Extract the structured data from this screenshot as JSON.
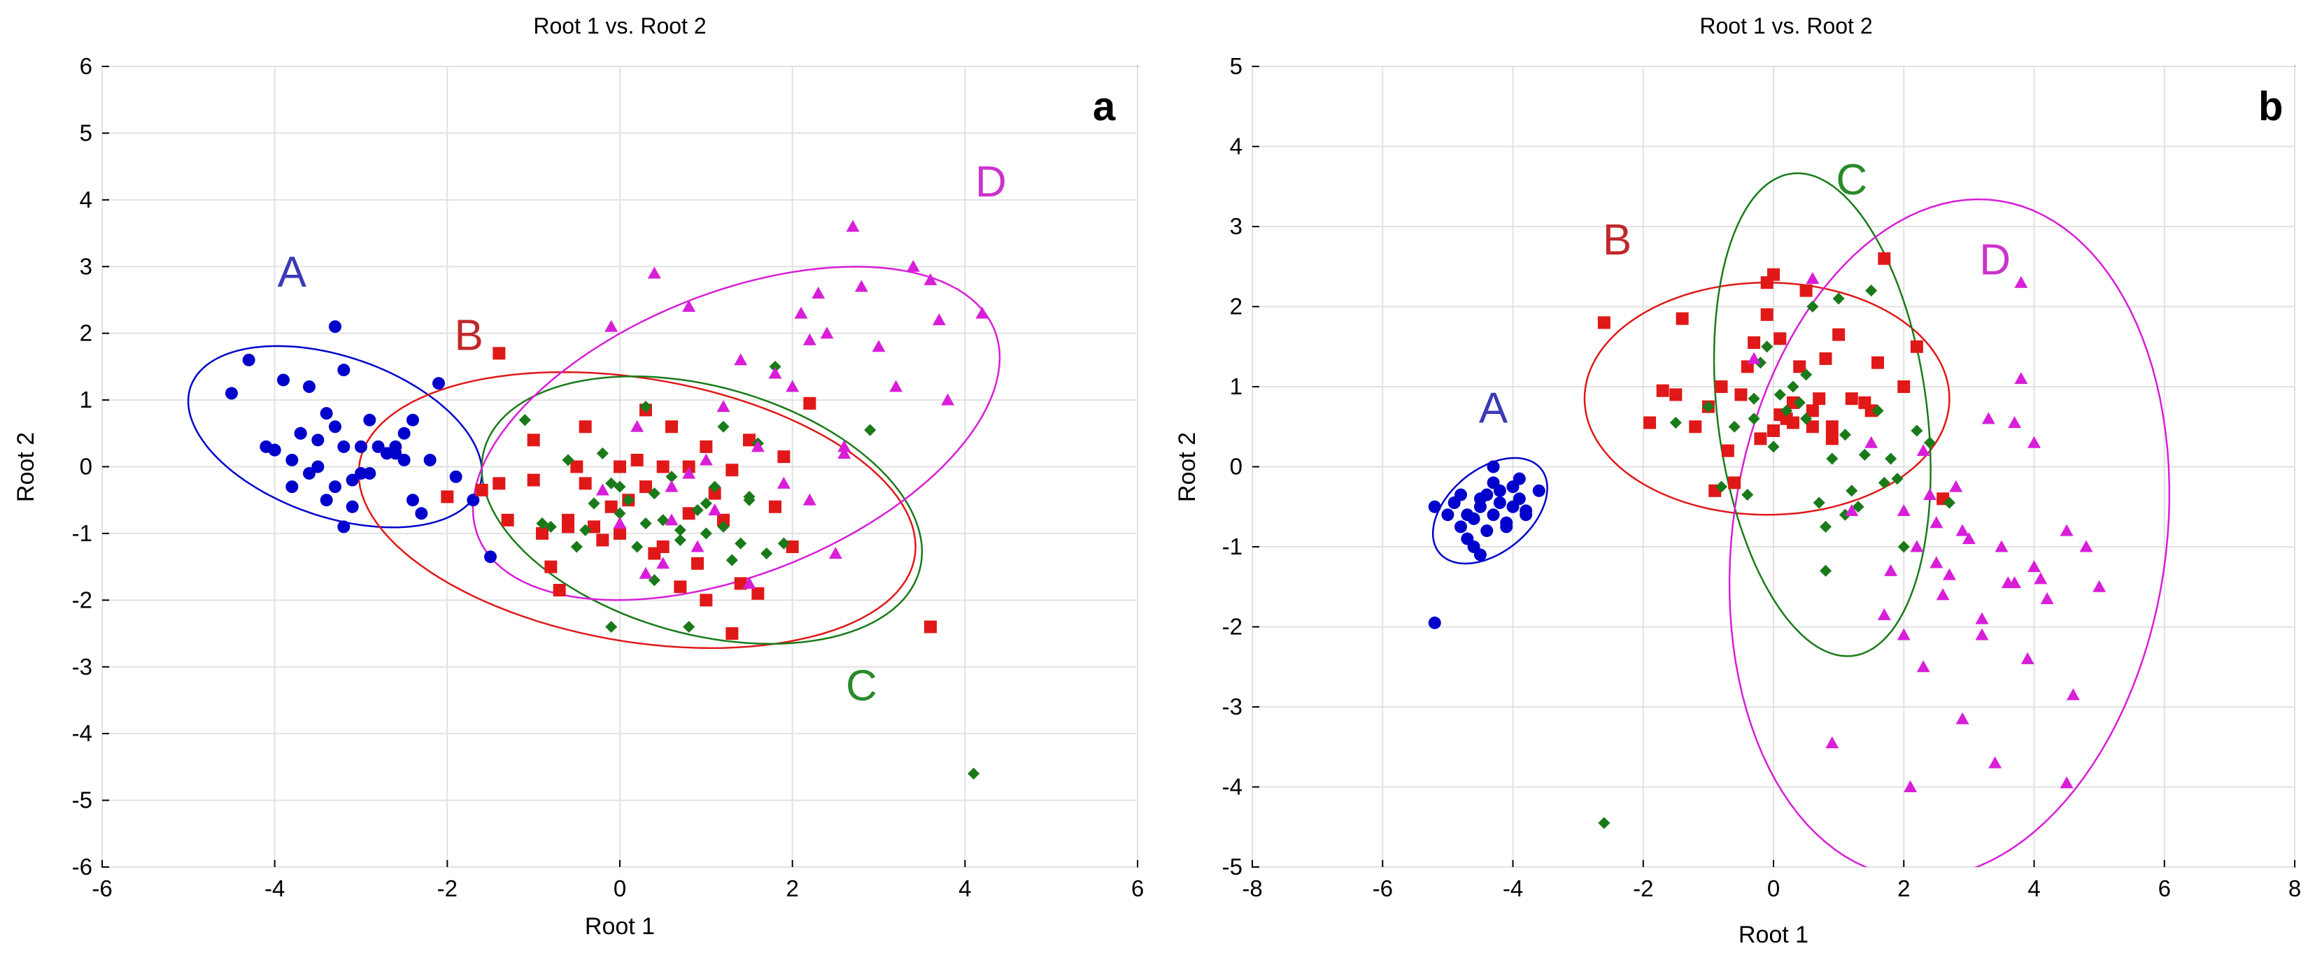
{
  "chart_data": [
    {
      "type": "scatter",
      "panel": "a",
      "title": "Root 1 vs. Root 2",
      "xlabel": "Root 1",
      "ylabel": "Root 2",
      "xlim": [
        -6,
        6
      ],
      "ylim": [
        -6,
        6
      ],
      "xticks": [
        -6,
        -4,
        -2,
        0,
        2,
        4,
        6
      ],
      "yticks": [
        -6,
        -5,
        -4,
        -3,
        -2,
        -1,
        0,
        1,
        2,
        3,
        4,
        5,
        6
      ],
      "grid": true,
      "series": [
        {
          "name": "A",
          "marker": "circle",
          "color": "#0000cc",
          "label_color": "#3a3ab8",
          "label_pos": [
            -3.8,
            2.7
          ],
          "ellipse": {
            "cx": -3.3,
            "cy": 0.45,
            "rx": 1.85,
            "ry": 1.15,
            "angle": -30
          },
          "x": [
            -4.5,
            -4.3,
            -4.1,
            -4.0,
            -3.9,
            -3.8,
            -3.7,
            -3.6,
            -3.5,
            -3.4,
            -3.3,
            -3.2,
            -3.1,
            -3.0,
            -2.9,
            -2.8,
            -2.7,
            -2.6,
            -2.5,
            -3.6,
            -3.4,
            -3.3,
            -3.1,
            -3.0,
            -2.9,
            -3.8,
            -3.5,
            -3.2,
            -2.6,
            -2.4,
            -2.3,
            -2.2,
            -2.5,
            -2.1,
            -1.9,
            -1.7,
            -1.5,
            -3.3,
            -3.2,
            -4.0,
            -3.7,
            -2.4
          ],
          "y": [
            1.1,
            1.6,
            0.3,
            0.25,
            1.3,
            0.1,
            0.5,
            1.2,
            0.0,
            0.8,
            0.6,
            0.3,
            -0.2,
            0.3,
            0.7,
            0.3,
            0.2,
            0.3,
            0.1,
            -0.1,
            -0.5,
            -0.3,
            -0.6,
            -0.1,
            -0.1,
            -0.3,
            0.4,
            -0.9,
            0.2,
            -0.5,
            -0.7,
            0.1,
            0.5,
            1.25,
            -0.15,
            -0.5,
            -1.35,
            2.1,
            1.45,
            0.25,
            0.5,
            0.7
          ]
        },
        {
          "name": "B",
          "marker": "square",
          "color": "#e01818",
          "label_color": "#c02828",
          "label_pos": [
            -1.75,
            1.75
          ],
          "ellipse": {
            "cx": 0.2,
            "cy": -0.65,
            "rx": 3.3,
            "ry": 1.95,
            "angle": -15
          },
          "x": [
            -2.0,
            -1.6,
            -1.4,
            -1.3,
            -1.0,
            -1.0,
            -0.9,
            -0.8,
            -0.7,
            -0.6,
            -0.5,
            -0.4,
            -0.4,
            -0.3,
            -0.2,
            -0.1,
            0.0,
            0.0,
            0.1,
            0.2,
            0.3,
            0.3,
            0.4,
            0.5,
            0.5,
            0.6,
            0.7,
            0.8,
            0.9,
            1.0,
            1.0,
            1.1,
            1.2,
            1.3,
            1.4,
            1.5,
            1.6,
            1.8,
            1.9,
            2.0,
            2.2,
            3.6,
            -1.4,
            -0.6,
            0.8,
            1.3
          ],
          "y": [
            -0.45,
            -0.35,
            1.7,
            -0.8,
            0.4,
            -0.2,
            -1.0,
            -1.5,
            -1.85,
            -0.9,
            0.0,
            0.6,
            -0.25,
            -0.9,
            -1.1,
            -0.6,
            -1.0,
            0.0,
            -0.5,
            0.1,
            0.85,
            -0.3,
            -1.3,
            0.0,
            -1.2,
            0.6,
            -1.8,
            0.0,
            -1.45,
            0.3,
            -2.0,
            -0.4,
            -0.8,
            -2.5,
            -1.75,
            0.4,
            -1.9,
            -0.6,
            0.15,
            -1.2,
            0.95,
            -2.4,
            -0.25,
            -0.8,
            -0.7,
            -0.05
          ]
        },
        {
          "name": "C",
          "marker": "diamond",
          "color": "#1a7a1a",
          "label_color": "#2a8a2a",
          "label_pos": [
            2.8,
            -3.5
          ],
          "ellipse": {
            "cx": 0.95,
            "cy": -0.65,
            "rx": 2.7,
            "ry": 1.8,
            "angle": -26
          },
          "x": [
            -1.1,
            -0.9,
            -0.8,
            -0.6,
            -0.5,
            -0.4,
            -0.3,
            -0.2,
            -0.1,
            0.0,
            0.0,
            0.1,
            0.2,
            0.3,
            0.4,
            0.5,
            0.6,
            0.7,
            0.8,
            0.9,
            1.0,
            1.0,
            1.1,
            1.2,
            1.3,
            1.4,
            1.5,
            1.6,
            1.7,
            1.8,
            1.9,
            -0.1,
            0.4,
            0.7,
            1.2,
            2.9,
            4.1,
            0.3,
            1.5
          ],
          "y": [
            0.7,
            -0.85,
            -0.9,
            0.1,
            -1.2,
            -0.95,
            -0.55,
            0.2,
            -2.4,
            -0.3,
            -0.7,
            -0.5,
            -1.2,
            0.9,
            -0.4,
            -0.8,
            -0.15,
            -1.1,
            -2.4,
            -0.65,
            -1.0,
            -0.55,
            -0.3,
            -0.9,
            -1.4,
            -1.15,
            -0.5,
            0.35,
            -1.3,
            1.5,
            -1.15,
            -0.25,
            -1.7,
            -0.95,
            0.6,
            0.55,
            -4.6,
            -0.85,
            -0.45
          ]
        },
        {
          "name": "D",
          "marker": "triangle",
          "color": "#d81ed8",
          "label_color": "#cc33cc",
          "label_pos": [
            4.3,
            4.05
          ],
          "ellipse": {
            "cx": 1.35,
            "cy": 0.5,
            "rx": 3.4,
            "ry": 2.0,
            "angle": 33
          },
          "x": [
            -0.1,
            0.2,
            0.4,
            0.6,
            0.8,
            1.0,
            1.2,
            1.4,
            1.6,
            1.8,
            2.0,
            2.1,
            2.2,
            2.3,
            2.4,
            2.5,
            2.6,
            2.7,
            2.8,
            3.0,
            3.2,
            3.4,
            3.6,
            3.7,
            3.8,
            4.2,
            2.2,
            2.6,
            0.3,
            0.6,
            0.9,
            1.5,
            -0.2,
            0.0,
            0.5,
            0.8,
            1.1,
            1.9
          ],
          "y": [
            2.1,
            0.6,
            2.9,
            -0.8,
            2.4,
            0.1,
            0.9,
            1.6,
            0.3,
            1.4,
            1.2,
            2.3,
            1.9,
            2.6,
            2.0,
            -1.3,
            0.3,
            3.6,
            2.7,
            1.8,
            1.2,
            3.0,
            2.8,
            2.2,
            1.0,
            2.3,
            -0.5,
            0.2,
            -1.6,
            -0.3,
            -1.2,
            -1.75,
            -0.35,
            -0.85,
            -1.45,
            -0.1,
            -0.65,
            -0.25
          ]
        }
      ],
      "panel_letter": "a"
    },
    {
      "type": "scatter",
      "panel": "b",
      "title": "Root 1 vs. Root 2",
      "xlabel": "Root 1",
      "ylabel": "Root 2",
      "xlim": [
        -8,
        8
      ],
      "ylim": [
        -5,
        5
      ],
      "xticks": [
        -8,
        -6,
        -4,
        -2,
        0,
        2,
        4,
        6,
        8
      ],
      "yticks": [
        -5,
        -4,
        -3,
        -2,
        -1,
        0,
        1,
        2,
        3,
        4,
        5
      ],
      "grid": true,
      "series": [
        {
          "name": "A",
          "marker": "circle",
          "color": "#0000cc",
          "label_color": "#3a3ab8",
          "label_pos": [
            -4.3,
            0.55
          ],
          "ellipse": {
            "cx": -4.35,
            "cy": -0.55,
            "rx": 0.95,
            "ry": 0.55,
            "angle": 28
          },
          "x": [
            -5.2,
            -5.0,
            -4.9,
            -4.8,
            -4.7,
            -4.6,
            -4.5,
            -4.5,
            -4.4,
            -4.3,
            -4.3,
            -4.2,
            -4.1,
            -4.0,
            -3.9,
            -3.8,
            -3.6,
            -4.6,
            -4.4,
            -4.2,
            -4.0,
            -3.8,
            -4.8,
            -4.5,
            -4.3,
            -4.1,
            -3.9,
            -4.7,
            -5.2
          ],
          "y": [
            -0.5,
            -0.6,
            -0.45,
            -0.75,
            -0.9,
            -1.0,
            -1.1,
            -0.5,
            -0.35,
            -0.6,
            -0.2,
            -0.3,
            -0.75,
            -0.5,
            -0.15,
            -0.55,
            -0.3,
            -0.65,
            -0.8,
            -0.45,
            -0.25,
            -0.6,
            -0.35,
            -0.4,
            0.0,
            -0.7,
            -0.4,
            -0.6,
            -1.95
          ]
        },
        {
          "name": "B",
          "marker": "square",
          "color": "#e01818",
          "label_color": "#c02828",
          "label_pos": [
            -2.4,
            2.65
          ],
          "ellipse": {
            "cx": -0.1,
            "cy": 0.85,
            "rx": 2.8,
            "ry": 1.45,
            "angle": 0
          },
          "x": [
            -2.6,
            -1.9,
            -1.7,
            -1.5,
            -1.4,
            -1.2,
            -1.0,
            -0.9,
            -0.7,
            -0.5,
            -0.4,
            -0.3,
            -0.2,
            -0.1,
            0.0,
            0.0,
            0.1,
            0.2,
            0.3,
            0.4,
            0.5,
            0.6,
            0.7,
            0.8,
            0.9,
            1.0,
            1.2,
            1.4,
            1.6,
            1.7,
            2.0,
            2.2,
            2.6,
            -0.1,
            0.3,
            0.6,
            -0.6,
            -0.8,
            0.1,
            0.9,
            1.5
          ],
          "y": [
            1.8,
            0.55,
            0.95,
            0.9,
            1.85,
            0.5,
            0.75,
            -0.3,
            0.2,
            0.9,
            1.25,
            1.55,
            0.35,
            2.3,
            0.45,
            2.4,
            1.6,
            0.6,
            0.8,
            1.25,
            2.2,
            0.5,
            0.85,
            1.35,
            0.35,
            1.65,
            0.85,
            0.8,
            1.3,
            2.6,
            1.0,
            1.5,
            -0.4,
            1.9,
            0.55,
            0.7,
            -0.2,
            1.0,
            0.65,
            0.5,
            0.7
          ]
        },
        {
          "name": "C",
          "marker": "diamond",
          "color": "#1a7a1a",
          "label_color": "#2a8a2a",
          "label_pos": [
            1.2,
            3.4
          ],
          "ellipse": {
            "cx": 0.75,
            "cy": 0.65,
            "rx": 3.05,
            "ry": 1.6,
            "angle": -80
          },
          "x": [
            -2.6,
            -1.5,
            -1.0,
            -0.8,
            -0.6,
            -0.4,
            -0.3,
            -0.2,
            -0.1,
            0.0,
            0.1,
            0.2,
            0.3,
            0.4,
            0.5,
            0.6,
            0.7,
            0.8,
            0.9,
            1.0,
            1.1,
            1.2,
            1.3,
            1.4,
            1.5,
            1.6,
            1.7,
            1.8,
            2.0,
            2.2,
            2.4,
            2.7,
            0.5,
            1.1,
            -0.3,
            0.8,
            1.9
          ],
          "y": [
            -4.45,
            0.55,
            0.75,
            -0.25,
            0.5,
            -0.35,
            0.6,
            1.3,
            1.5,
            0.25,
            0.9,
            0.7,
            1.0,
            0.8,
            0.6,
            2.0,
            -0.45,
            -1.3,
            0.1,
            2.1,
            -0.6,
            -0.3,
            -0.5,
            0.15,
            2.2,
            0.7,
            -0.2,
            0.1,
            -1.0,
            0.45,
            0.3,
            -0.45,
            1.15,
            0.4,
            0.85,
            -0.75,
            -0.15
          ]
        },
        {
          "name": "D",
          "marker": "triangle",
          "color": "#d81ed8",
          "label_color": "#cc33cc",
          "label_pos": [
            3.4,
            2.4
          ],
          "ellipse": {
            "cx": 2.7,
            "cy": -0.9,
            "rx": 3.3,
            "ry": 4.3,
            "angle": -15
          },
          "x": [
            -0.3,
            0.6,
            0.9,
            1.2,
            1.5,
            1.7,
            1.8,
            2.0,
            2.1,
            2.2,
            2.3,
            2.4,
            2.5,
            2.6,
            2.7,
            2.8,
            2.9,
            3.0,
            3.2,
            3.3,
            3.4,
            3.5,
            3.6,
            3.7,
            3.8,
            3.9,
            4.0,
            4.1,
            4.2,
            4.5,
            4.6,
            4.8,
            5.0,
            3.8,
            3.2,
            2.9,
            2.3,
            2.5,
            4.0,
            4.5,
            3.7,
            2.0
          ],
          "y": [
            1.35,
            2.35,
            -3.45,
            -0.55,
            0.3,
            -1.85,
            -1.3,
            -2.1,
            -4.0,
            -1.0,
            0.2,
            -0.35,
            -0.7,
            -1.6,
            -1.35,
            -0.25,
            -3.15,
            -0.9,
            -2.1,
            0.6,
            -3.7,
            -1.0,
            -1.45,
            -1.45,
            2.3,
            -2.4,
            -1.25,
            -1.4,
            -1.65,
            -3.95,
            -2.85,
            -1.0,
            -1.5,
            1.1,
            -1.9,
            -0.8,
            -2.5,
            -1.2,
            0.3,
            -0.8,
            0.55,
            -0.55
          ]
        }
      ],
      "panel_letter": "b"
    }
  ]
}
